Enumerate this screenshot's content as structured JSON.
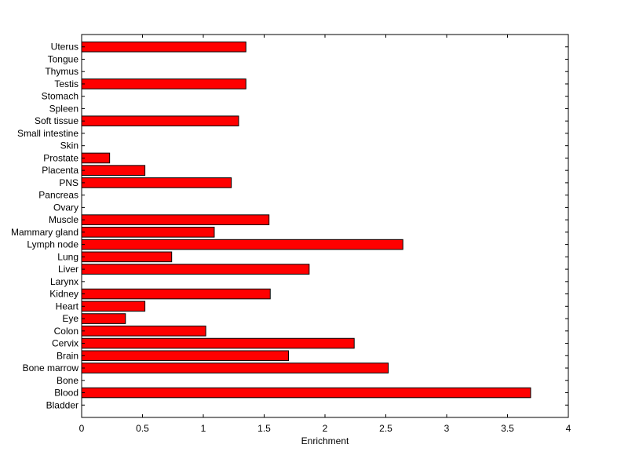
{
  "chart_data": {
    "type": "bar",
    "orientation": "horizontal",
    "xlabel": "Enrichment",
    "xlim": [
      0,
      4
    ],
    "xticks": [
      "0",
      "0.5",
      "1",
      "1.5",
      "2",
      "2.5",
      "3",
      "3.5",
      "4"
    ],
    "xtick_values": [
      0,
      0.5,
      1,
      1.5,
      2,
      2.5,
      3,
      3.5,
      4
    ],
    "bar_color": "#ff0000",
    "categories": [
      "Bladder",
      "Blood",
      "Bone",
      "Bone marrow",
      "Brain",
      "Cervix",
      "Colon",
      "Eye",
      "Heart",
      "Kidney",
      "Larynx",
      "Liver",
      "Lung",
      "Lymph node",
      "Mammary gland",
      "Muscle",
      "Ovary",
      "Pancreas",
      "PNS",
      "Placenta",
      "Prostate",
      "Skin",
      "Small intestine",
      "Soft tissue",
      "Spleen",
      "Stomach",
      "Testis",
      "Thymus",
      "Tongue",
      "Uterus"
    ],
    "values": [
      0,
      3.69,
      0,
      2.52,
      1.7,
      2.24,
      1.02,
      0.36,
      0.52,
      1.55,
      0,
      1.87,
      0.74,
      2.64,
      1.09,
      1.54,
      0,
      0,
      1.23,
      0.52,
      0.23,
      0,
      0,
      1.29,
      0,
      0,
      1.35,
      0,
      0,
      1.35
    ]
  }
}
